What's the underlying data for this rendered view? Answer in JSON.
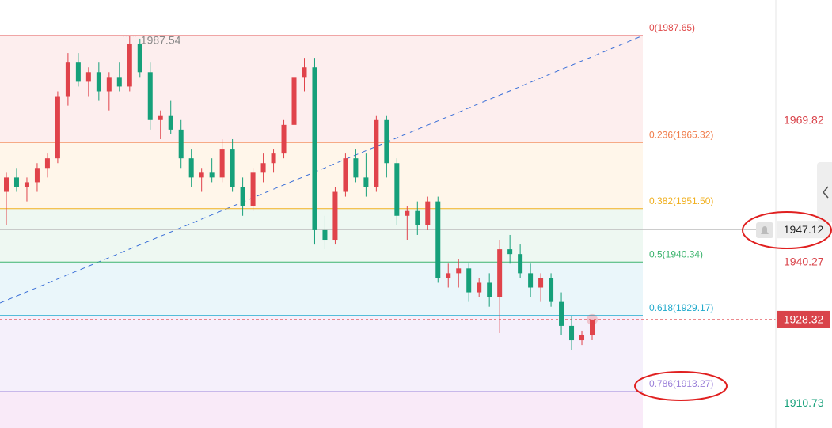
{
  "chart_data": {
    "type": "candlestick",
    "ylim": [
      1905.66,
      1995.09
    ],
    "up_color": "#e0434b",
    "down_color": "#16a07a",
    "ohlc": [
      [
        1955,
        1959,
        1948,
        1958
      ],
      [
        1958,
        1960,
        1955,
        1956
      ],
      [
        1956,
        1958,
        1953,
        1957
      ],
      [
        1957,
        1961,
        1955,
        1960
      ],
      [
        1960,
        1963,
        1958,
        1962
      ],
      [
        1962,
        1976,
        1961,
        1975
      ],
      [
        1975,
        1984,
        1973,
        1982
      ],
      [
        1982,
        1984,
        1977,
        1978
      ],
      [
        1978,
        1981,
        1975,
        1980
      ],
      [
        1980,
        1982,
        1974,
        1976
      ],
      [
        1976,
        1980,
        1972,
        1979
      ],
      [
        1979,
        1982,
        1976,
        1977
      ],
      [
        1977,
        1987.54,
        1976,
        1986
      ],
      [
        1986,
        1987,
        1979,
        1980
      ],
      [
        1980,
        1982,
        1968,
        1970
      ],
      [
        1970,
        1972,
        1966,
        1971
      ],
      [
        1971,
        1974,
        1967,
        1968
      ],
      [
        1968,
        1970,
        1960,
        1962
      ],
      [
        1962,
        1964,
        1956,
        1958
      ],
      [
        1958,
        1960,
        1955,
        1959
      ],
      [
        1959,
        1962,
        1957,
        1958
      ],
      [
        1958,
        1966,
        1957,
        1964
      ],
      [
        1964,
        1966,
        1955,
        1956
      ],
      [
        1956,
        1958,
        1950,
        1952
      ],
      [
        1952,
        1960,
        1951,
        1959
      ],
      [
        1959,
        1963,
        1957,
        1961
      ],
      [
        1961,
        1964,
        1959,
        1963
      ],
      [
        1963,
        1970,
        1962,
        1969
      ],
      [
        1969,
        1980,
        1968,
        1979
      ],
      [
        1979,
        1983,
        1976,
        1981
      ],
      [
        1981,
        1983,
        1944,
        1947
      ],
      [
        1947,
        1950,
        1943,
        1945
      ],
      [
        1945,
        1956,
        1944,
        1955
      ],
      [
        1955,
        1963,
        1954,
        1962
      ],
      [
        1962,
        1964,
        1957,
        1958
      ],
      [
        1958,
        1963,
        1954,
        1956
      ],
      [
        1956,
        1971,
        1955,
        1970
      ],
      [
        1970,
        1971,
        1958,
        1961
      ],
      [
        1961,
        1962,
        1948,
        1950
      ],
      [
        1950,
        1952,
        1945,
        1951
      ],
      [
        1951,
        1953,
        1946,
        1948
      ],
      [
        1948,
        1954,
        1947,
        1953
      ],
      [
        1953,
        1954,
        1936,
        1937
      ],
      [
        1937,
        1940,
        1935,
        1938
      ],
      [
        1938,
        1941,
        1935,
        1939
      ],
      [
        1939,
        1940,
        1932,
        1934
      ],
      [
        1934,
        1937,
        1933,
        1936
      ],
      [
        1936,
        1938,
        1931,
        1933
      ],
      [
        1933,
        1945,
        1925.5,
        1943
      ],
      [
        1943,
        1946,
        1940,
        1942
      ],
      [
        1942,
        1944,
        1937,
        1938
      ],
      [
        1938,
        1940,
        1933,
        1935
      ],
      [
        1935,
        1938,
        1932,
        1937
      ],
      [
        1937,
        1938,
        1931,
        1932
      ],
      [
        1932,
        1934,
        1925,
        1927
      ],
      [
        1927,
        1929,
        1922,
        1924
      ],
      [
        1924,
        1926,
        1923,
        1925
      ],
      [
        1925,
        1928.32,
        1924,
        1928.32
      ]
    ],
    "high_marker": 12,
    "fib_levels": [
      {
        "value": 1987.65,
        "label": "0(1987.65)",
        "color": "#e04b4b",
        "fill": "#fdeeee"
      },
      {
        "value": 1965.32,
        "label": "0.236(1965.32)",
        "color": "#f07c4a",
        "fill": "#fff6ea"
      },
      {
        "value": 1951.5,
        "label": "0.382(1951.50)",
        "color": "#f0b020",
        "fill": "#eef8f2"
      },
      {
        "value": 1940.34,
        "label": "0.5(1940.34)",
        "color": "#3cb46e",
        "fill": "#eaf6fa"
      },
      {
        "value": 1929.17,
        "label": "0.618(1929.17)",
        "color": "#22aacc",
        "fill": "#f5f0fb"
      },
      {
        "value": 1913.27,
        "label": "0.786(1913.27)",
        "color": "#9a7fd9",
        "fill": "#f9eaf8"
      }
    ],
    "yticks": [
      1969.82,
      1940.27,
      1910.73
    ],
    "ytick_colors": [
      "#d9434a",
      "#d9434a",
      "#16a07a"
    ],
    "price_lines": [
      {
        "value": 1947.12,
        "color": "#bbbbbb",
        "label_bg": "#eeeeee",
        "text_color": "#222222"
      },
      {
        "value": 1928.32,
        "color": "#e0434b",
        "label_bg": "#d9434a",
        "text_color": "#ffffff"
      }
    ]
  }
}
